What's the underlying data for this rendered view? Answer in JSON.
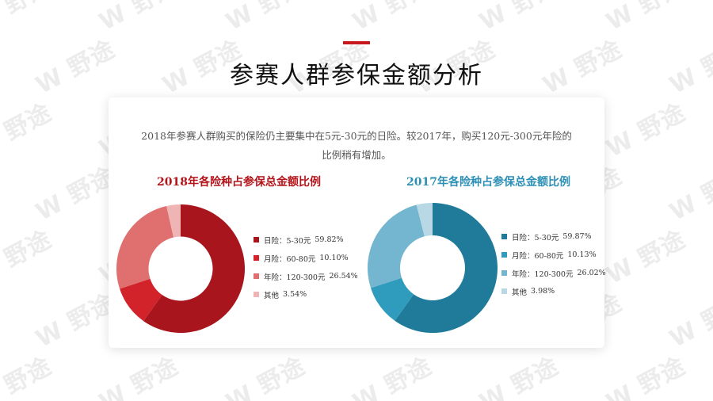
{
  "page": {
    "title": "参赛人群参保金额分析",
    "watermark_text": "W 野途",
    "summary_line1": "2018年参赛人群购买的保险仍主要集中在5元-30元的日险。较2017年，购买120元-300元年险的",
    "summary_line2": "比例稍有增加。"
  },
  "colors": {
    "accent": "#c8161d",
    "title_2018": "#b3141b",
    "title_2017": "#2b8fb5"
  },
  "chart_data": [
    {
      "type": "pie",
      "donut": true,
      "title": "2018年各险种占参保总金额比例",
      "series": [
        {
          "label": "日险：5-30元",
          "value": 59.82,
          "display": "59.82%",
          "color": "#a8151c"
        },
        {
          "label": "月险：60-80元",
          "value": 10.1,
          "display": "10.10%",
          "color": "#d2232a"
        },
        {
          "label": "年险：120-300元",
          "value": 26.54,
          "display": "26.54%",
          "color": "#e07070"
        },
        {
          "label": "其他",
          "value": 3.54,
          "display": "3.54%",
          "color": "#efb4b4"
        }
      ],
      "legend_position": "right"
    },
    {
      "type": "pie",
      "donut": true,
      "title": "2017年各险种占参保总金额比例",
      "series": [
        {
          "label": "日险：5-30元",
          "value": 59.87,
          "display": "59.87%",
          "color": "#1f7b99"
        },
        {
          "label": "月险：60-80元",
          "value": 10.13,
          "display": "10.13%",
          "color": "#2f9cbd"
        },
        {
          "label": "年险：120-300元",
          "value": 26.02,
          "display": "26.02%",
          "color": "#74b5cf"
        },
        {
          "label": "其他",
          "value": 3.98,
          "display": "3.98%",
          "color": "#b8d8e5"
        }
      ],
      "legend_position": "right"
    }
  ]
}
